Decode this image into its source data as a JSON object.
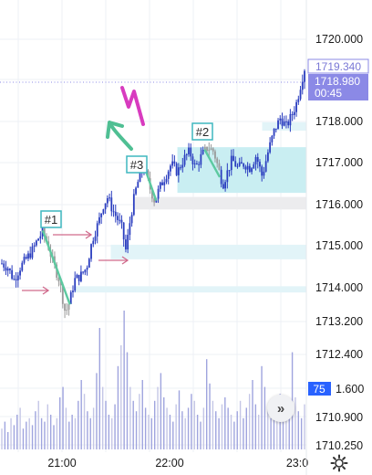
{
  "chart_data": {
    "type": "candlestick",
    "price_axis": {
      "ticks": [
        "1720.000",
        "1719.000",
        "1718.000",
        "1717.000",
        "1716.000",
        "1715.000",
        "1714.000",
        "1713.200"
      ],
      "range": [
        1713.2,
        1721.0
      ]
    },
    "volume_axis": {
      "ticks": [
        "1712.400",
        "1711.600",
        "1710.900",
        "1710.250"
      ]
    },
    "time_axis": {
      "ticks": [
        "21:00",
        "22:00",
        "23:0"
      ]
    },
    "current_price": "1719.340",
    "bid_price": "1718.980",
    "countdown": "00:45",
    "volume_value": "75",
    "volume_subvalue": "1.600",
    "annotations": [
      {
        "label": "#1",
        "time": 0.14,
        "price": 1715.4
      },
      {
        "label": "#2",
        "time": 0.55,
        "price": 1717.75
      },
      {
        "label": "#3",
        "time": 0.36,
        "price": 1717.0
      }
    ],
    "zones": [
      {
        "from": 1716.3,
        "to": 1717.4,
        "start": 0.58,
        "shade": "strong"
      },
      {
        "from": 1717.8,
        "to": 1718.0,
        "start": 0.86,
        "shade": "light"
      },
      {
        "from": 1715.9,
        "to": 1716.2,
        "start": 0.44,
        "shade": "gray"
      },
      {
        "from": 1714.7,
        "to": 1715.05,
        "start": 0.36,
        "shade": "light"
      },
      {
        "from": 1713.9,
        "to": 1714.05,
        "start": 0.24,
        "shade": "light"
      }
    ],
    "close_path": [
      [
        0.0,
        1714.6
      ],
      [
        0.02,
        1714.5
      ],
      [
        0.04,
        1714.2
      ],
      [
        0.06,
        1714.5
      ],
      [
        0.08,
        1714.7
      ],
      [
        0.1,
        1714.9
      ],
      [
        0.12,
        1715.2
      ],
      [
        0.135,
        1715.35
      ],
      [
        0.15,
        1715.1
      ],
      [
        0.17,
        1714.6
      ],
      [
        0.19,
        1714.2
      ],
      [
        0.21,
        1713.4
      ],
      [
        0.225,
        1713.7
      ],
      [
        0.24,
        1714.2
      ],
      [
        0.26,
        1714.3
      ],
      [
        0.28,
        1714.5
      ],
      [
        0.3,
        1715.2
      ],
      [
        0.32,
        1715.6
      ],
      [
        0.335,
        1716.0
      ],
      [
        0.35,
        1716.2
      ],
      [
        0.365,
        1715.9
      ],
      [
        0.38,
        1715.7
      ],
      [
        0.395,
        1715.5
      ],
      [
        0.41,
        1714.9
      ],
      [
        0.425,
        1715.7
      ],
      [
        0.44,
        1716.3
      ],
      [
        0.455,
        1716.7
      ],
      [
        0.47,
        1716.9
      ],
      [
        0.49,
        1716.4
      ],
      [
        0.505,
        1716.1
      ],
      [
        0.52,
        1716.4
      ],
      [
        0.54,
        1716.7
      ],
      [
        0.56,
        1717.0
      ],
      [
        0.58,
        1716.8
      ],
      [
        0.6,
        1717.1
      ],
      [
        0.62,
        1717.3
      ],
      [
        0.64,
        1716.9
      ],
      [
        0.66,
        1717.2
      ],
      [
        0.68,
        1717.4
      ],
      [
        0.7,
        1717.3
      ],
      [
        0.715,
        1716.9
      ],
      [
        0.73,
        1716.5
      ],
      [
        0.745,
        1716.8
      ],
      [
        0.76,
        1717.1
      ],
      [
        0.78,
        1716.9
      ],
      [
        0.8,
        1717.0
      ],
      [
        0.82,
        1716.9
      ],
      [
        0.84,
        1717.2
      ],
      [
        0.86,
        1716.7
      ],
      [
        0.88,
        1717.3
      ],
      [
        0.9,
        1717.8
      ],
      [
        0.92,
        1718.1
      ],
      [
        0.94,
        1717.9
      ],
      [
        0.96,
        1718.2
      ],
      [
        0.975,
        1718.5
      ],
      [
        0.99,
        1719.0
      ],
      [
        1.0,
        1719.3
      ]
    ],
    "highlight_legs": [
      {
        "from": 0.135,
        "to": 0.225
      },
      {
        "from": 0.47,
        "to": 0.51
      },
      {
        "from": 0.67,
        "to": 0.72
      }
    ],
    "arrows": [
      {
        "time": 0.19,
        "price": 1714.0
      },
      {
        "time": 0.24,
        "price": 1715.35
      },
      {
        "time": 0.33,
        "price": 1714.75
      }
    ],
    "volume_bars": [
      6,
      8,
      5,
      9,
      7,
      10,
      12,
      6,
      8,
      9,
      7,
      11,
      14,
      9,
      8,
      13,
      10,
      7,
      9,
      15,
      18,
      12,
      8,
      10,
      9,
      14,
      20,
      16,
      11,
      9,
      12,
      22,
      35,
      18,
      14,
      10,
      9,
      13,
      24,
      30,
      40,
      28,
      18,
      14,
      11,
      16,
      20,
      12,
      10,
      9,
      14,
      18,
      22,
      15,
      12,
      10,
      8,
      13,
      17,
      11,
      9,
      12,
      16,
      14,
      10,
      8,
      12,
      26,
      19,
      14,
      11,
      9,
      13,
      15,
      12,
      10,
      8,
      11,
      14,
      9,
      12,
      16,
      20,
      13,
      10,
      24,
      18,
      12,
      9,
      14,
      11,
      16,
      13,
      10,
      12,
      28,
      15,
      11,
      9,
      13
    ]
  },
  "ui": {
    "scroll_icon": "double-chevron-right-icon",
    "settings_icon": "gear-icon",
    "accent": "#2962ff",
    "tag_color": "#8b89e6",
    "zone_color": "#cdeff2",
    "up_color": "#2a3dbf",
    "leg_color": "#5cc9a0"
  }
}
